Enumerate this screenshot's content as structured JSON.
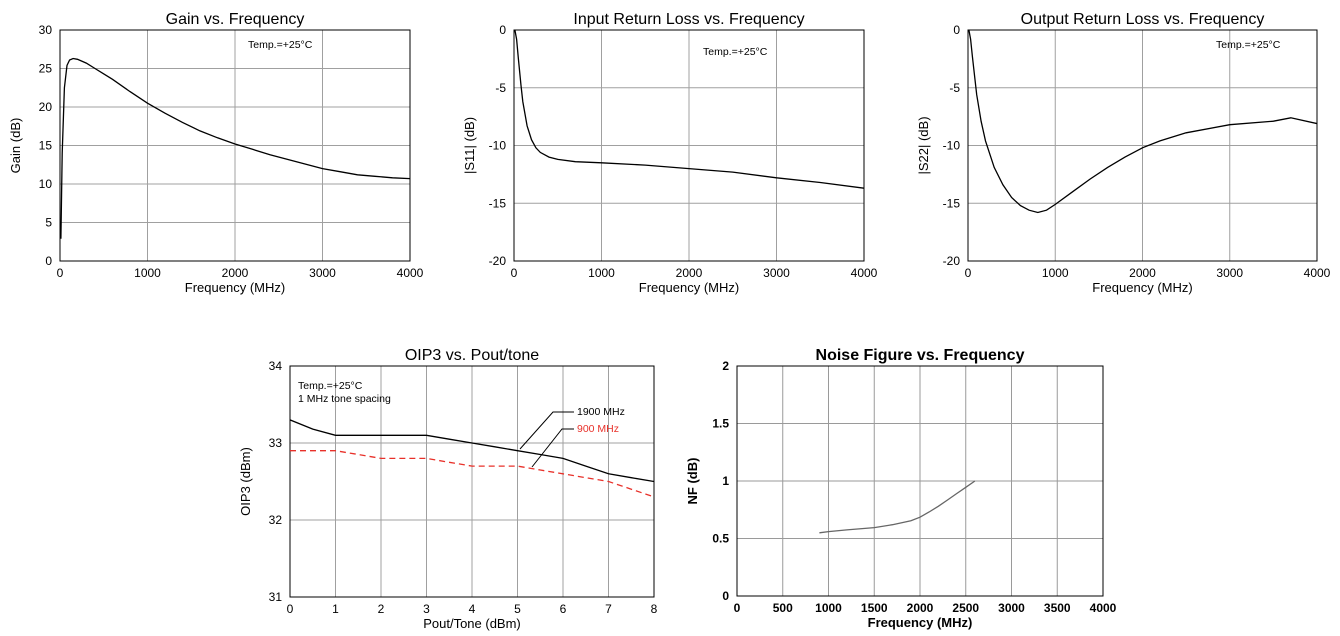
{
  "chart_data": [
    {
      "type": "line",
      "title": "Gain vs. Frequency",
      "xlabel": "Frequency (MHz)",
      "ylabel": "Gain (dB)",
      "xlim": [
        0,
        4000
      ],
      "ylim": [
        0,
        30
      ],
      "xticks": [
        0,
        1000,
        2000,
        3000,
        4000
      ],
      "yticks": [
        0,
        5,
        10,
        15,
        20,
        25,
        30
      ],
      "grid": true,
      "annotations": [
        "Temp.=+25°C"
      ],
      "series": [
        {
          "color": "#000000",
          "dash": "solid",
          "x": [
            10,
            25,
            50,
            80,
            110,
            150,
            200,
            300,
            400,
            500,
            600,
            800,
            1000,
            1200,
            1400,
            1600,
            1800,
            2000,
            2200,
            2400,
            2600,
            2800,
            3000,
            3200,
            3400,
            3600,
            3800,
            4000
          ],
          "y": [
            2.9,
            14,
            22.5,
            25.4,
            26.1,
            26.3,
            26.2,
            25.7,
            25.0,
            24.3,
            23.6,
            22.0,
            20.5,
            19.2,
            18.0,
            16.9,
            16.0,
            15.2,
            14.5,
            13.8,
            13.2,
            12.6,
            12.0,
            11.6,
            11.2,
            11.0,
            10.8,
            10.7
          ]
        }
      ]
    },
    {
      "type": "line",
      "title": "Input Return Loss vs. Frequency",
      "xlabel": "Frequency (MHz)",
      "ylabel": "|S11| (dB)",
      "xlim": [
        0,
        4000
      ],
      "ylim": [
        -20,
        0
      ],
      "xticks": [
        0,
        1000,
        2000,
        3000,
        4000
      ],
      "yticks": [
        -20,
        -15,
        -10,
        -5,
        0
      ],
      "grid": true,
      "annotations": [
        "Temp.=+25°C"
      ],
      "series": [
        {
          "color": "#000000",
          "dash": "solid",
          "x": [
            10,
            30,
            50,
            80,
            100,
            150,
            200,
            250,
            300,
            400,
            500,
            700,
            1000,
            1500,
            2000,
            2500,
            3000,
            3500,
            4000
          ],
          "y": [
            0,
            -0.8,
            -2.5,
            -4.8,
            -6.2,
            -8.3,
            -9.5,
            -10.2,
            -10.6,
            -11.0,
            -11.2,
            -11.4,
            -11.5,
            -11.7,
            -12.0,
            -12.3,
            -12.8,
            -13.2,
            -13.7
          ]
        }
      ]
    },
    {
      "type": "line",
      "title": "Output Return Loss vs. Frequency",
      "xlabel": "Frequency (MHz)",
      "ylabel": "|S22| (dB)",
      "xlim": [
        0,
        4000
      ],
      "ylim": [
        -20,
        0
      ],
      "xticks": [
        0,
        1000,
        2000,
        3000,
        4000
      ],
      "yticks": [
        -20,
        -15,
        -10,
        -5,
        0
      ],
      "grid": true,
      "annotations": [
        "Temp.=+25°C"
      ],
      "series": [
        {
          "color": "#000000",
          "dash": "solid",
          "x": [
            10,
            30,
            50,
            80,
            100,
            150,
            200,
            300,
            400,
            500,
            600,
            700,
            800,
            900,
            1000,
            1200,
            1400,
            1600,
            1800,
            2000,
            2200,
            2500,
            3000,
            3500,
            3700,
            4000
          ],
          "y": [
            0,
            -0.8,
            -2.3,
            -4.3,
            -5.6,
            -7.9,
            -9.6,
            -11.9,
            -13.4,
            -14.5,
            -15.2,
            -15.6,
            -15.8,
            -15.6,
            -15.1,
            -14.0,
            -12.9,
            -11.9,
            -11.0,
            -10.2,
            -9.6,
            -8.9,
            -8.2,
            -7.9,
            -7.6,
            -8.1
          ]
        }
      ]
    },
    {
      "type": "line",
      "title": "OIP3 vs. Pout/tone",
      "xlabel": "Pout/Tone (dBm)",
      "ylabel": "OIP3 (dBm)",
      "xlim": [
        0,
        8
      ],
      "ylim": [
        31,
        34
      ],
      "xticks": [
        0,
        1,
        2,
        3,
        4,
        5,
        6,
        7,
        8
      ],
      "yticks": [
        31,
        32,
        33,
        34
      ],
      "grid": true,
      "annotations": [
        "Temp.=+25°C",
        "1 MHz tone spacing"
      ],
      "series": [
        {
          "name": "1900 MHz",
          "color": "#000000",
          "dash": "solid",
          "x": [
            0,
            0.5,
            1,
            1.5,
            2,
            2.5,
            3,
            3.5,
            4,
            4.5,
            5,
            5.5,
            6,
            6.5,
            7,
            7.5,
            8
          ],
          "y": [
            33.3,
            33.18,
            33.1,
            33.1,
            33.1,
            33.1,
            33.1,
            33.05,
            33.0,
            32.95,
            32.9,
            32.85,
            32.8,
            32.7,
            32.6,
            32.55,
            32.5
          ]
        },
        {
          "name": "900 MHz",
          "color": "#e8312a",
          "dash": "dashed",
          "x": [
            0,
            0.5,
            1,
            1.5,
            2,
            2.5,
            3,
            3.5,
            4,
            4.5,
            5,
            5.5,
            6,
            6.5,
            7,
            7.5,
            8
          ],
          "y": [
            32.9,
            32.9,
            32.9,
            32.85,
            32.8,
            32.8,
            32.8,
            32.75,
            32.7,
            32.7,
            32.7,
            32.65,
            32.6,
            32.55,
            32.5,
            32.4,
            32.3
          ]
        }
      ]
    },
    {
      "type": "line",
      "title": "Noise Figure vs. Frequency",
      "xlabel": "Frequency (MHz)",
      "ylabel": "NF (dB)",
      "xlim": [
        0,
        4000
      ],
      "ylim": [
        0,
        2
      ],
      "xticks": [
        0,
        500,
        1000,
        1500,
        2000,
        2500,
        3000,
        3500,
        4000
      ],
      "yticks": [
        0,
        0.5,
        1,
        1.5,
        2
      ],
      "grid": true,
      "annotations": [],
      "series": [
        {
          "color": "#666666",
          "dash": "solid",
          "x": [
            900,
            1000,
            1200,
            1500,
            1700,
            1900,
            2000,
            2100,
            2200,
            2300,
            2400,
            2500,
            2600
          ],
          "y": [
            0.55,
            0.56,
            0.575,
            0.595,
            0.62,
            0.655,
            0.685,
            0.73,
            0.78,
            0.835,
            0.89,
            0.945,
            1.0
          ]
        }
      ]
    }
  ]
}
